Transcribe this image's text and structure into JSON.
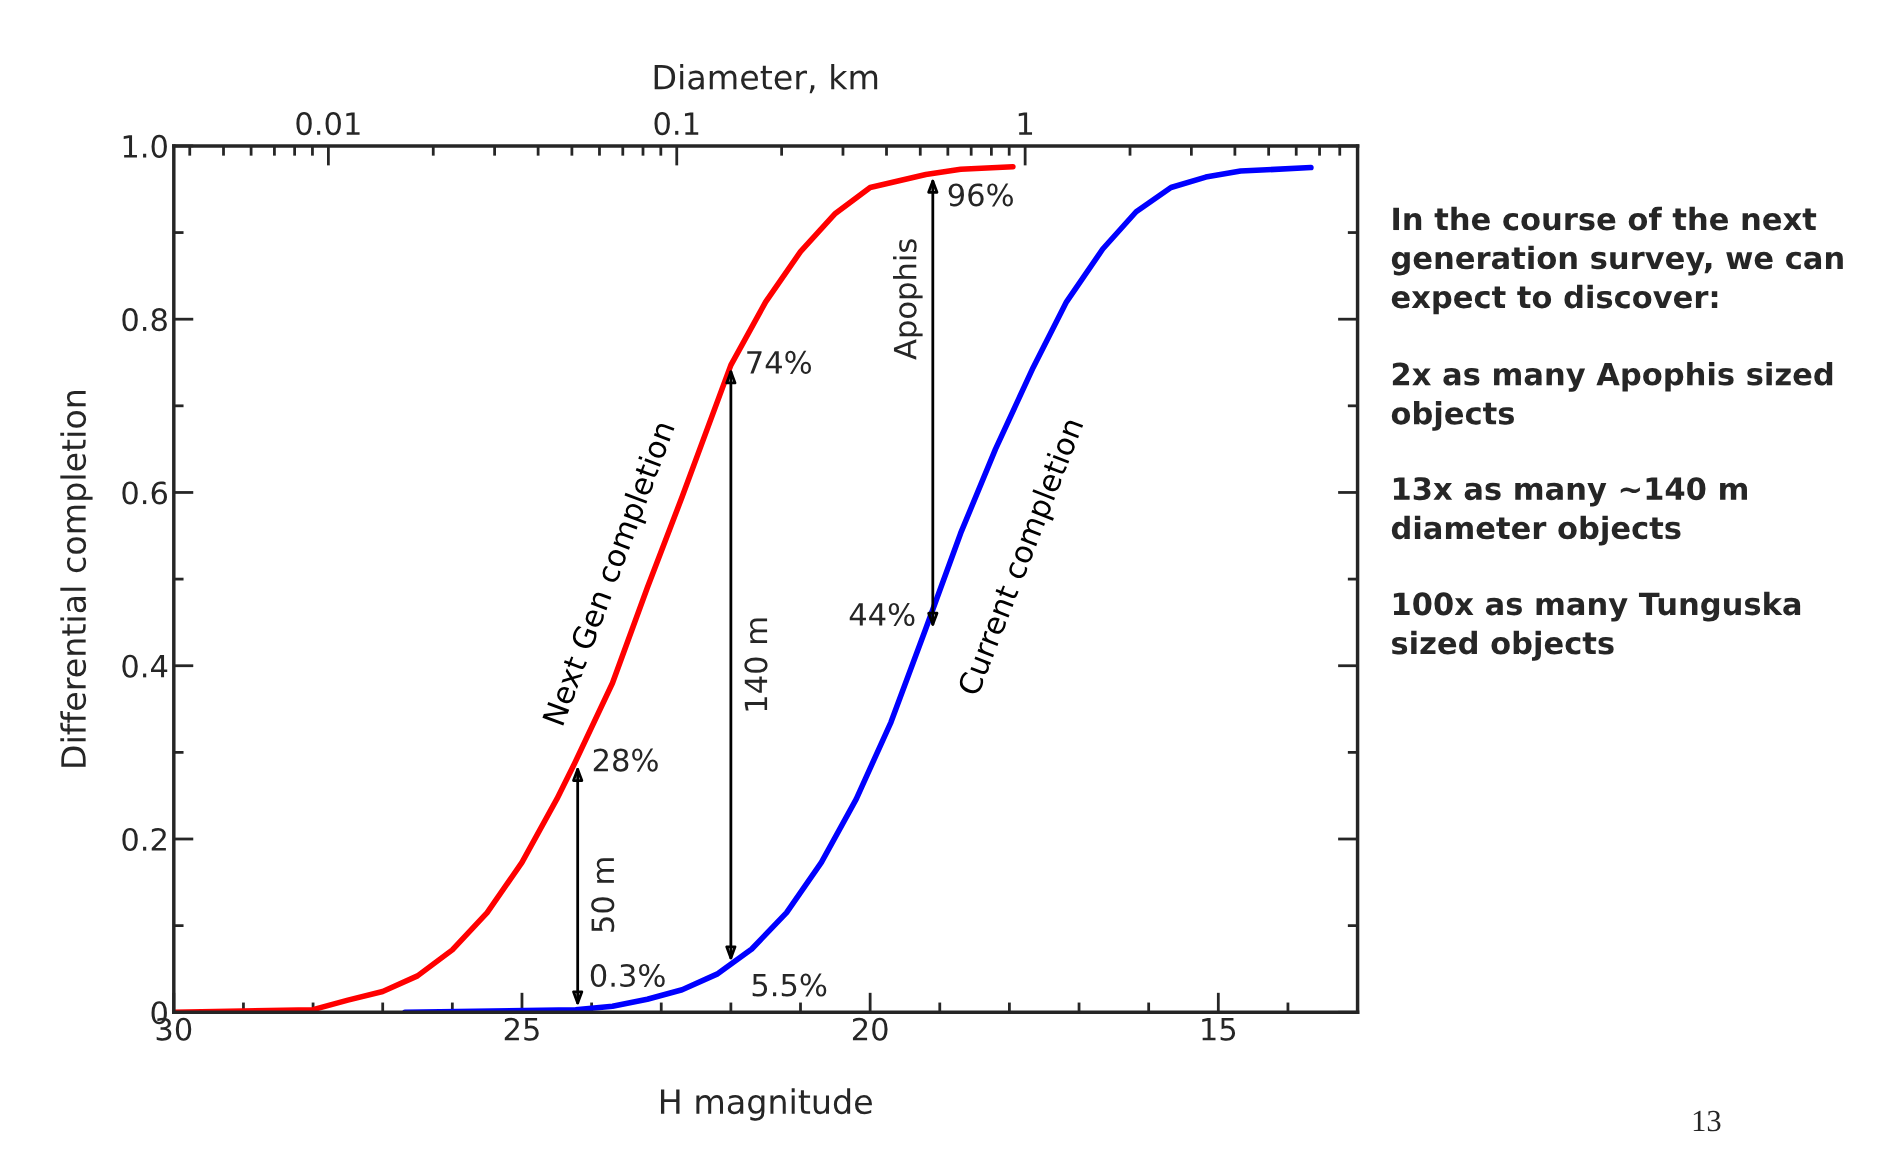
{
  "chart_data": {
    "type": "line",
    "xlabel": "H magnitude",
    "ylabel": "Differential completion",
    "x2label": "Diameter, km",
    "xlim": [
      30,
      13
    ],
    "xticks": [
      30,
      25,
      20,
      15
    ],
    "ylim": [
      0,
      1
    ],
    "yticks": [
      {
        "value": 0,
        "label": "0"
      },
      {
        "value": 0.2,
        "label": "0.2"
      },
      {
        "value": 0.4,
        "label": "0.4"
      },
      {
        "value": 0.6,
        "label": "0.6"
      },
      {
        "value": 0.8,
        "label": "0.8"
      },
      {
        "value": 1.0,
        "label": "1.0"
      }
    ],
    "x2lim": [
      0.0036,
      9
    ],
    "x2ticks": [
      0.01,
      0.1,
      1
    ],
    "log": "x2",
    "grid": false,
    "series": [
      {
        "name": "Next Gen completion",
        "color": "#ff0000",
        "x": [
          30,
          28,
          27.5,
          27,
          26.5,
          26,
          25.5,
          25,
          24.5,
          24.24,
          23.7,
          23.2,
          22.7,
          22,
          21.5,
          21,
          20.5,
          20,
          19.2,
          18.7,
          17.95
        ],
        "values": [
          0,
          0.003,
          0.014,
          0.024,
          0.042,
          0.072,
          0.115,
          0.173,
          0.246,
          0.288,
          0.38,
          0.49,
          0.595,
          0.747,
          0.82,
          0.878,
          0.922,
          0.952,
          0.967,
          0.973,
          0.976
        ]
      },
      {
        "name": "Current completion",
        "color": "#0000ff",
        "x": [
          26.68,
          24.23,
          23.7,
          23.2,
          22.7,
          22.2,
          21.7,
          21.2,
          20.7,
          20.2,
          19.7,
          19.2,
          18.7,
          18.2,
          17.66,
          17.18,
          16.66,
          16.18,
          15.68,
          15.18,
          14.68,
          13.67
        ],
        "values": [
          0,
          0.003,
          0.007,
          0.015,
          0.026,
          0.044,
          0.073,
          0.115,
          0.173,
          0.246,
          0.335,
          0.443,
          0.553,
          0.65,
          0.744,
          0.82,
          0.881,
          0.924,
          0.952,
          0.964,
          0.971,
          0.975
        ]
      }
    ],
    "annotations": [
      {
        "text": "28%",
        "x": 24.2,
        "y": 0.288
      },
      {
        "text": "0.3%",
        "x": 24.2,
        "y": 0.003
      },
      {
        "text": "74%",
        "x": 22.0,
        "y": 0.747
      },
      {
        "text": "5.5%",
        "x": 22.0,
        "y": 0.055
      },
      {
        "text": "96%",
        "x": 19.1,
        "y": 0.967
      },
      {
        "text": "44%",
        "x": 19.1,
        "y": 0.44
      },
      "50 m",
      "140 m",
      "Apophis",
      "In the course of the next\ngeneration survey, we can\nexpect to discover:",
      "2x as many Apophis sized\nobjects",
      "13x as many ~140 m\ndiameter objects",
      "100x as many Tunguska\nsized objects",
      "13"
    ]
  }
}
